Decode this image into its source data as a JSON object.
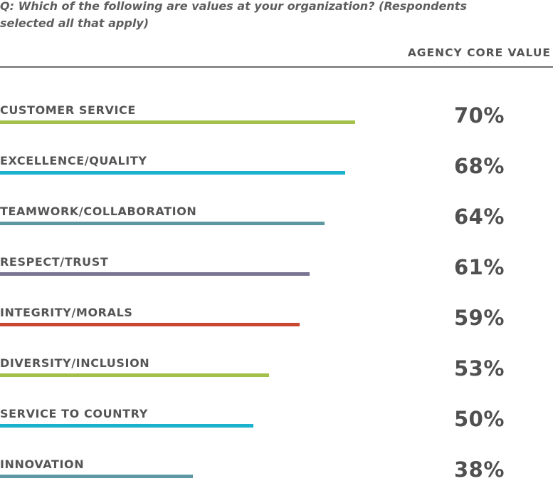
{
  "question": "Q: Which of the following are values at your organization? (Respondents selected all that apply)",
  "column_header": "AGENCY CORE VALUE",
  "chart_data": {
    "type": "bar",
    "orientation": "horizontal",
    "title": "Q: Which of the following are values at your organization? (Respondents selected all that apply)",
    "value_header": "AGENCY CORE VALUE",
    "categories": [
      "CUSTOMER SERVICE",
      "EXCELLENCE/QUALITY",
      "TEAMWORK/COLLABORATION",
      "RESPECT/TRUST",
      "INTEGRITY/MORALS",
      "DIVERSITY/INCLUSION",
      "SERVICE TO COUNTRY",
      "INNOVATION"
    ],
    "values": [
      70,
      68,
      64,
      61,
      59,
      53,
      50,
      38
    ],
    "value_labels": [
      "70%",
      "68%",
      "64%",
      "61%",
      "59%",
      "53%",
      "50%",
      "38%"
    ],
    "unit": "%",
    "colors": [
      "#a3c14a",
      "#1cb1cd",
      "#5c97a2",
      "#7a7692",
      "#c9472e",
      "#a3c14a",
      "#1cb1cd",
      "#5c97a2"
    ],
    "xlim": [
      0,
      100
    ],
    "grid": false,
    "legend": false
  }
}
